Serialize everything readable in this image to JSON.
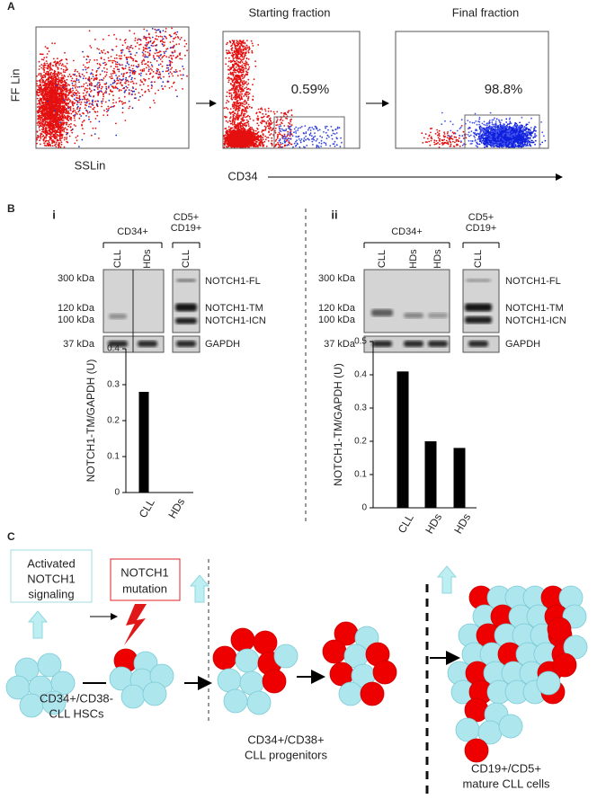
{
  "panel_a": {
    "label": "A",
    "plot_1": {
      "y_label": "FF Lin",
      "x_label": "SSLin"
    },
    "plot_2": {
      "title": "Starting fraction",
      "gate": "0.59%"
    },
    "plot_3": {
      "title": "Final fraction",
      "gate": "98.8%"
    },
    "x_label": "CD34"
  },
  "panel_b": {
    "label": "B",
    "blot_i": {
      "label": "i",
      "group_1": "CD34+",
      "group_2": [
        "CD5+",
        "CD19+"
      ],
      "lanes": [
        "CLL",
        "HDs",
        "CLL"
      ],
      "markers": [
        "300 kDa",
        "120 kDa",
        "100 kDa",
        "37 kDa"
      ],
      "bands": [
        "NOTCH1-FL",
        "NOTCH1-TM",
        "NOTCH1-ICN",
        "GAPDH"
      ]
    },
    "blot_ii": {
      "label": "ii",
      "group_1": "CD34+",
      "group_2": [
        "CD5+",
        "CD19+"
      ],
      "lanes": [
        "CLL",
        "HDs",
        "HDs",
        "CLL"
      ],
      "markers": [
        "300 kDa",
        "120 kDa",
        "100 kDa",
        "37 kDa"
      ],
      "bands": [
        "NOTCH1-FL",
        "NOTCH1-TM",
        "NOTCH1-ICN",
        "GAPDH"
      ]
    }
  },
  "chart_data": [
    {
      "type": "bar",
      "y_label": "NOTCH1-TM/GAPDH (U)",
      "categories": [
        "CLL",
        "HDs"
      ],
      "values": [
        0.28,
        0
      ],
      "color": "#000000",
      "ylim": [
        0,
        0.4
      ],
      "yticks": [
        0,
        0.1,
        0.2,
        0.3,
        0.4
      ]
    },
    {
      "type": "bar",
      "y_label": "NOTCH1-TM/GAPDH (U)",
      "categories": [
        "CLL",
        "HDs",
        "HDs"
      ],
      "values": [
        0.41,
        0.2,
        0.18
      ],
      "color": "#000000",
      "ylim": [
        0,
        0.5
      ],
      "yticks": [
        0,
        0.1,
        0.2,
        0.3,
        0.4,
        0.5
      ]
    }
  ],
  "panel_c": {
    "label": "C",
    "box_signaling": [
      "Activated",
      "NOTCH1",
      "signaling"
    ],
    "box_mutation": [
      "NOTCH1",
      "mutation"
    ],
    "stage_1": [
      "CD34+/CD38-",
      "CLL HSCs"
    ],
    "stage_2": [
      "CD34+/CD38+",
      "CLL progenitors"
    ],
    "stage_3": [
      "CD19+/CD5+",
      "mature CLL cells"
    ]
  }
}
